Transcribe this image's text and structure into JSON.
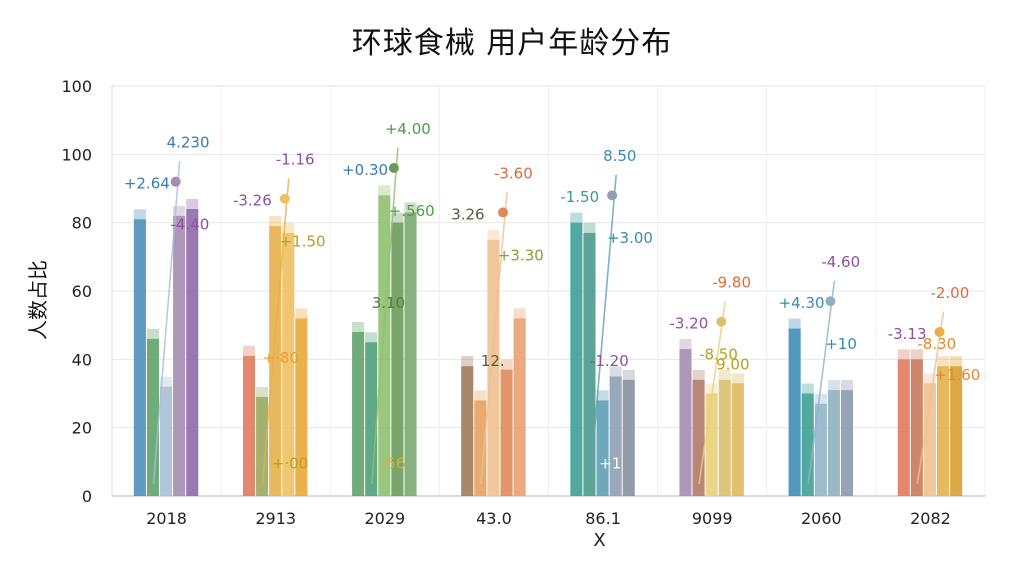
{
  "chart_data": {
    "type": "bar",
    "title": "环球食械 用户年龄分布",
    "xlabel": "X",
    "ylabel": "人数占比",
    "y_tick_labels": [
      "0",
      "20",
      "40",
      "60",
      "80",
      "100",
      "100"
    ],
    "ylim": [
      0,
      100
    ],
    "grid": true,
    "categories": [
      "2018",
      "2913",
      "2029",
      "43.0",
      "86.1",
      "9099",
      "2060",
      "2082"
    ],
    "colors": {
      "c1": "#4f8fba",
      "c2": "#e07a5f",
      "c3": "#5fa36a",
      "c4": "#a07a5a",
      "c5": "#3fa095",
      "c6": "#a58cb0",
      "c7": "#3f8db5",
      "c8": "#e07a5f",
      "yellow": "#e8b04a",
      "purple": "#9a6aa8",
      "orange": "#e88a3a",
      "green": "#7aa85a"
    },
    "groups": [
      {
        "category": "2018",
        "bars": [
          81,
          46,
          32,
          82,
          84
        ],
        "bar_colors": [
          "#4f8fba",
          "#5fa36a",
          "#a9bfd6",
          "#a58cb0",
          "#8e6aa8"
        ],
        "labels": [
          {
            "text": "+2.64",
            "color": "#3a7bb0"
          },
          {
            "text": "4.230",
            "color": "#3a7bb0"
          },
          {
            "text": "-4.40",
            "color": "#8e4f9e"
          }
        ]
      },
      {
        "category": "2913",
        "bars": [
          41,
          29,
          79,
          77,
          52
        ],
        "bar_colors": [
          "#e07a5f",
          "#9aa860",
          "#e8b04a",
          "#f0c060",
          "#e8a83a"
        ],
        "labels": [
          {
            "text": "-3.26",
            "color": "#8e4f9e"
          },
          {
            "text": "-1.16",
            "color": "#8e4f9e"
          },
          {
            "text": "+1.50",
            "color": "#b8a020"
          },
          {
            "text": "+·80",
            "color": "#e8a030"
          },
          {
            "text": "+·00",
            "color": "#b8a020"
          }
        ]
      },
      {
        "category": "2029",
        "bars": [
          48,
          45,
          88,
          80,
          83
        ],
        "bar_colors": [
          "#5fa36a",
          "#4f9f7a",
          "#8fc070",
          "#6a9a5a",
          "#7aa870"
        ],
        "labels": [
          {
            "text": "+0.30",
            "color": "#3a7bb0"
          },
          {
            "text": "+4.00",
            "color": "#4aa040"
          },
          {
            "text": "+.560",
            "color": "#4aa040"
          },
          {
            "text": "3.10",
            "color": "#5a7a3a"
          },
          {
            "text": "-56",
            "color": "#d8b040"
          }
        ]
      },
      {
        "category": "43.0",
        "bars": [
          38,
          28,
          75,
          37,
          52
        ],
        "bar_colors": [
          "#a07a5a",
          "#e8a060",
          "#f0c090",
          "#e08a5a",
          "#e8a070"
        ],
        "labels": [
          {
            "text": "3.26",
            "color": "#5a5a3a"
          },
          {
            "text": "-3.60",
            "color": "#e06a3a"
          },
          {
            "text": "+3.30",
            "color": "#8aa030"
          },
          {
            "text": "12.",
            "color": "#5a5a3a"
          }
        ]
      },
      {
        "category": "86.1",
        "bars": [
          80,
          77,
          28,
          35,
          34
        ],
        "bar_colors": [
          "#3fa095",
          "#4a9a8a",
          "#5f9fb5",
          "#8f9fb5",
          "#8a8fa0"
        ],
        "labels": [
          {
            "text": "-1.50",
            "color": "#3a9a90"
          },
          {
            "text": "8.50",
            "color": "#3a8ab0"
          },
          {
            "text": "+3.00",
            "color": "#3a8ab0"
          },
          {
            "text": "-1.20",
            "color": "#8e4f9e"
          },
          {
            "text": "+1",
            "color": "#ffffff"
          }
        ]
      },
      {
        "category": "9099",
        "bars": [
          43,
          34,
          30,
          34,
          33
        ],
        "bar_colors": [
          "#a58cb0",
          "#b07a6a",
          "#e8d07a",
          "#d8c070",
          "#e0b860"
        ],
        "labels": [
          {
            "text": "-3.20",
            "color": "#8e4f9e"
          },
          {
            "text": "-9.80",
            "color": "#e06a3a"
          },
          {
            "text": "9.00",
            "color": "#b8a020"
          },
          {
            "text": "-8.50",
            "color": "#b8a020"
          }
        ]
      },
      {
        "category": "2060",
        "bars": [
          49,
          30,
          27,
          31,
          31
        ],
        "bar_colors": [
          "#3f8db5",
          "#3fa095",
          "#8fb5c8",
          "#8fb0c0",
          "#8a9ab0"
        ],
        "labels": [
          {
            "text": "+4.30",
            "color": "#3a8ab0"
          },
          {
            "text": "-4.60",
            "color": "#8e4f9e"
          },
          {
            "text": "+10",
            "color": "#3a8ab0"
          }
        ]
      },
      {
        "category": "2082",
        "bars": [
          40,
          40,
          33,
          38,
          38
        ],
        "bar_colors": [
          "#e07a5f",
          "#c87a5a",
          "#f0c090",
          "#e8b04a",
          "#d8a030"
        ],
        "labels": [
          {
            "text": "-3.13",
            "color": "#8e4f9e"
          },
          {
            "text": "-2.00",
            "color": "#e06a3a"
          },
          {
            "text": "+1.60",
            "color": "#e08a30"
          },
          {
            "text": "-8.30",
            "color": "#e08a30"
          }
        ]
      }
    ]
  }
}
